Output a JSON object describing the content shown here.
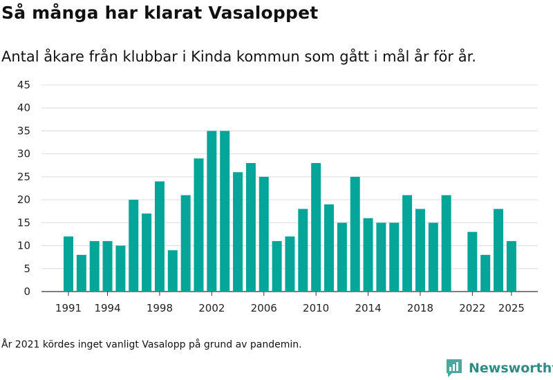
{
  "header": {
    "title": "Så många har klarat Vasaloppet",
    "subtitle": "Antal åkare från klubbar i Kinda kommun som gått i mål år för år."
  },
  "footer": {
    "note": "År 2021 kördes inget vanligt Vasalopp på grund av pandemin.",
    "brand": "Newsworthy",
    "brand_icon": "newsworthy-logo-icon"
  },
  "colors": {
    "bar": "#05a59a",
    "grid": "#dcdcdc",
    "axis": "#333333",
    "brand": "#2d8c86"
  },
  "chart_data": {
    "type": "bar",
    "title": "Så många har klarat Vasaloppet",
    "xlabel": "",
    "ylabel": "",
    "ylim": [
      0,
      45
    ],
    "yticks": [
      0,
      5,
      10,
      15,
      20,
      25,
      30,
      35,
      40,
      45
    ],
    "categories": [
      1991,
      1992,
      1993,
      1994,
      1995,
      1996,
      1997,
      1998,
      1999,
      2000,
      2001,
      2002,
      2003,
      2004,
      2005,
      2006,
      2007,
      2008,
      2009,
      2010,
      2011,
      2012,
      2013,
      2014,
      2015,
      2016,
      2017,
      2018,
      2019,
      2020,
      2021,
      2022,
      2023,
      2024,
      2025
    ],
    "values": [
      12,
      8,
      11,
      11,
      10,
      20,
      17,
      24,
      9,
      21,
      29,
      35,
      35,
      26,
      28,
      25,
      11,
      12,
      18,
      28,
      19,
      15,
      25,
      16,
      15,
      15,
      21,
      18,
      15,
      21,
      null,
      13,
      8,
      18,
      11
    ],
    "xtick_labels": [
      "1991",
      "1994",
      "1998",
      "2002",
      "2006",
      "2010",
      "2014",
      "2018",
      "2022",
      "2025"
    ],
    "grid": true,
    "legend": "none"
  }
}
